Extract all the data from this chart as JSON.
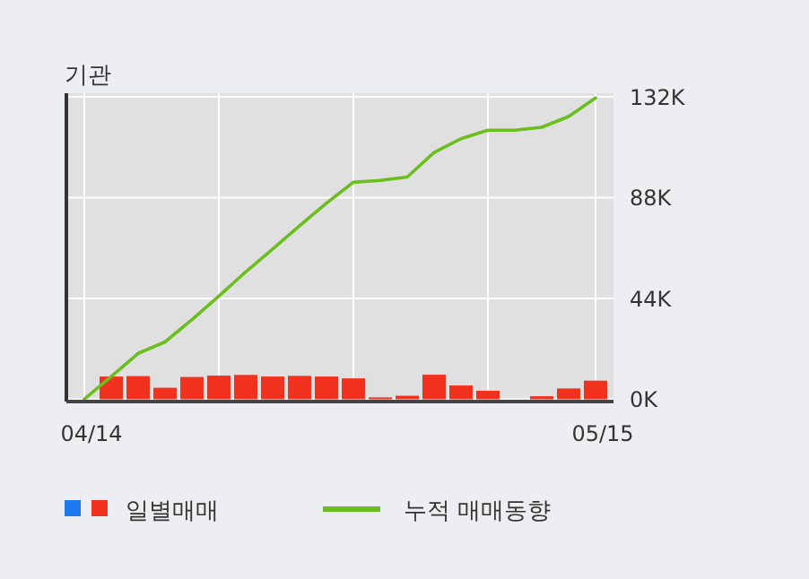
{
  "chart_data": {
    "type": "line",
    "title": "기관",
    "categories": [
      "04/14",
      null,
      null,
      null,
      null,
      null,
      null,
      null,
      null,
      null,
      null,
      null,
      null,
      null,
      null,
      null,
      null,
      null,
      null,
      "05/15"
    ],
    "series": [
      {
        "name": "일별매매",
        "type": "bar",
        "color": "#f0321e",
        "values": [
          0,
          9900,
          10100,
          5000,
          9700,
          10300,
          10600,
          9900,
          10200,
          9900,
          9100,
          800,
          1500,
          10700,
          6000,
          3700,
          0,
          1300,
          4700,
          8100
        ]
      },
      {
        "name": "누적 매매동향",
        "color": "#6abe1e",
        "values": [
          0,
          9900,
          20000,
          25000,
          34700,
          45000,
          55600,
          65500,
          75700,
          85600,
          94700,
          95500,
          97000,
          107700,
          113700,
          117400,
          117400,
          118700,
          123400,
          131500
        ]
      }
    ],
    "ylim": [
      0,
      132000
    ],
    "yticks": [
      {
        "value": 0,
        "label": "0K"
      },
      {
        "value": 44000,
        "label": "44K"
      },
      {
        "value": 88000,
        "label": "88K"
      },
      {
        "value": 132000,
        "label": "132K"
      }
    ],
    "grid": true,
    "legend": "bottom"
  }
}
